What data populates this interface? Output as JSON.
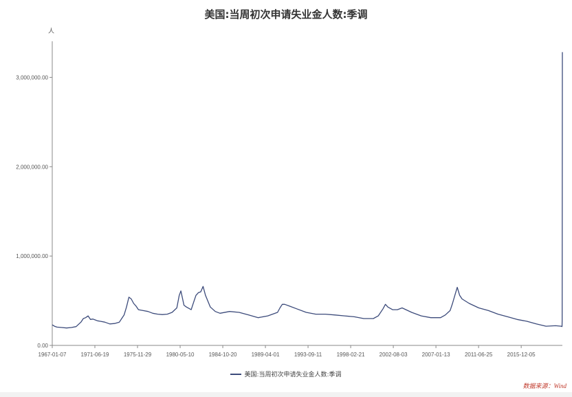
{
  "colors": {
    "series": "#3b4a7a",
    "axis": "#888888",
    "source": "#c0392b"
  },
  "chart_data": {
    "type": "line",
    "title": "美国:当周初次申请失业金人数:季调",
    "y_unit": "人",
    "ylim": [
      0,
      3500000
    ],
    "y_ticks": [
      0,
      1000000,
      2000000,
      3000000
    ],
    "y_tick_labels": [
      "0.00",
      "1,000,000.00",
      "2,000,000.00",
      "3,000,000.00"
    ],
    "xlim": [
      "1967-01-07",
      "2020-03-21"
    ],
    "x_ticks": [
      "1967-01-07",
      "1971-06-19",
      "1975-11-29",
      "1980-05-10",
      "1984-10-20",
      "1989-04-01",
      "1993-09-11",
      "1998-02-21",
      "2002-08-03",
      "2007-01-13",
      "2011-06-25",
      "2015-12-05"
    ],
    "grid": false,
    "legend_position": "bottom",
    "source_note": "数据来源：Wind",
    "series": [
      {
        "name": "美国:当周初次申请失业金人数:季调",
        "x": [
          "1967-01-07",
          "1967-04-01",
          "1967-07-01",
          "1968-01-06",
          "1968-07-06",
          "1969-01-04",
          "1969-07-05",
          "1970-01-03",
          "1970-04-04",
          "1970-07-04",
          "1970-10-03",
          "1971-01-02",
          "1971-04-03",
          "1971-07-03",
          "1971-10-02",
          "1972-01-01",
          "1972-07-01",
          "1973-01-06",
          "1973-07-07",
          "1974-01-05",
          "1974-04-06",
          "1974-07-06",
          "1974-10-05",
          "1975-01-04",
          "1975-04-05",
          "1975-07-05",
          "1975-10-04",
          "1976-01-03",
          "1976-07-03",
          "1977-01-01",
          "1977-07-02",
          "1978-01-07",
          "1978-07-01",
          "1979-01-06",
          "1979-07-07",
          "1980-01-05",
          "1980-04-05",
          "1980-06-07",
          "1980-10-04",
          "1981-01-03",
          "1981-07-04",
          "1981-10-03",
          "1982-01-02",
          "1982-04-03",
          "1982-07-03",
          "1982-10-02",
          "1983-01-01",
          "1983-07-02",
          "1984-01-07",
          "1984-07-07",
          "1985-07-06",
          "1986-07-05",
          "1987-07-04",
          "1988-07-02",
          "1989-07-01",
          "1990-07-07",
          "1990-10-06",
          "1991-01-05",
          "1991-04-06",
          "1991-10-05",
          "1992-07-04",
          "1993-07-03",
          "1994-07-02",
          "1995-07-01",
          "1996-07-06",
          "1997-07-05",
          "1998-07-04",
          "1999-07-03",
          "2000-07-01",
          "2001-01-06",
          "2001-07-07",
          "2001-10-06",
          "2002-01-05",
          "2002-07-06",
          "2003-01-04",
          "2003-07-05",
          "2004-07-03",
          "2005-07-02",
          "2006-07-01",
          "2007-07-07",
          "2008-01-05",
          "2008-07-05",
          "2008-10-04",
          "2009-01-03",
          "2009-04-04",
          "2009-07-04",
          "2009-10-03",
          "2010-07-03",
          "2011-07-02",
          "2012-07-07",
          "2013-07-06",
          "2014-07-05",
          "2015-07-04",
          "2016-07-02",
          "2017-07-01",
          "2018-07-07",
          "2019-07-06",
          "2020-02-01",
          "2020-03-07",
          "2020-03-14",
          "2020-03-21"
        ],
        "values": [
          230000,
          215000,
          205000,
          200000,
          195000,
          200000,
          210000,
          260000,
          300000,
          310000,
          330000,
          290000,
          295000,
          285000,
          275000,
          270000,
          260000,
          240000,
          245000,
          260000,
          300000,
          340000,
          430000,
          540000,
          520000,
          470000,
          440000,
          400000,
          390000,
          380000,
          360000,
          350000,
          345000,
          350000,
          370000,
          420000,
          560000,
          610000,
          450000,
          430000,
          400000,
          480000,
          560000,
          590000,
          600000,
          660000,
          560000,
          430000,
          380000,
          360000,
          380000,
          370000,
          340000,
          310000,
          330000,
          370000,
          420000,
          460000,
          460000,
          440000,
          410000,
          370000,
          350000,
          350000,
          340000,
          330000,
          320000,
          300000,
          300000,
          330000,
          410000,
          460000,
          430000,
          400000,
          400000,
          420000,
          370000,
          330000,
          310000,
          310000,
          340000,
          390000,
          470000,
          560000,
          650000,
          560000,
          520000,
          470000,
          420000,
          390000,
          350000,
          320000,
          290000,
          270000,
          240000,
          215000,
          220000,
          215000,
          211000,
          282000,
          3283000
        ]
      }
    ]
  }
}
